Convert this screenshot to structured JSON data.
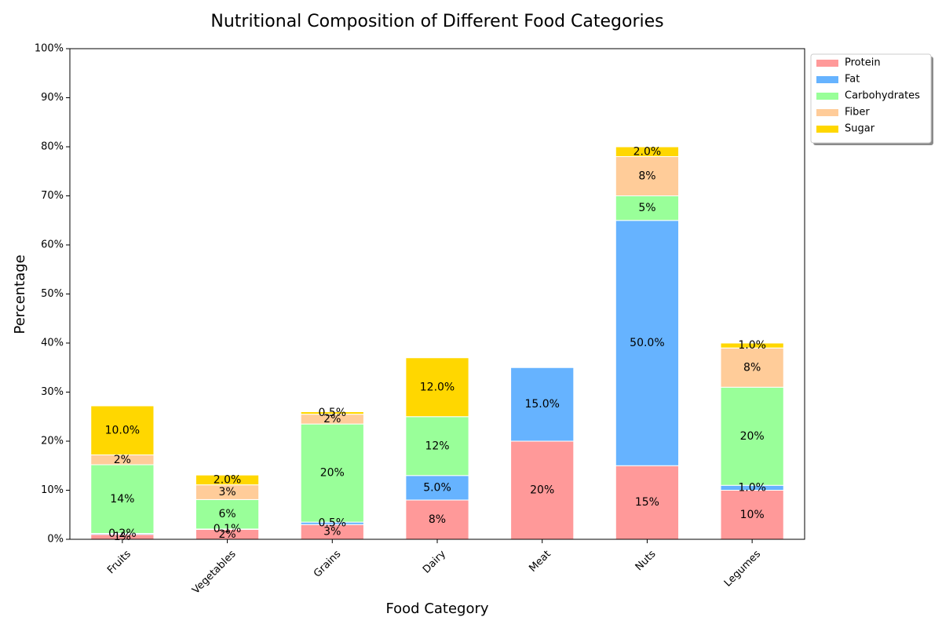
{
  "chart_data": {
    "type": "bar",
    "stacked": true,
    "title": "Nutritional Composition of Different Food Categories",
    "xlabel": "Food Category",
    "ylabel": "Percentage",
    "ylim": [
      0,
      100
    ],
    "yticks": [
      "0%",
      "10%",
      "20%",
      "30%",
      "40%",
      "50%",
      "60%",
      "70%",
      "80%",
      "90%",
      "100%"
    ],
    "categories": [
      "Fruits",
      "Vegetables",
      "Grains",
      "Dairy",
      "Meat",
      "Nuts",
      "Legumes"
    ],
    "legend_position": "upper-right-outside",
    "grid": false,
    "series": [
      {
        "name": "Protein",
        "color": "#ff9999",
        "values": [
          1,
          2,
          3,
          8,
          20,
          15,
          10
        ],
        "labels": [
          "1%",
          "2%",
          "3%",
          "8%",
          "20%",
          "15%",
          "10%"
        ]
      },
      {
        "name": "Fat",
        "color": "#66b3ff",
        "values": [
          0.2,
          0.1,
          0.5,
          5,
          15,
          50,
          1
        ],
        "labels": [
          "0.2%",
          "0.1%",
          "0.5%",
          "5.0%",
          "15.0%",
          "50.0%",
          "1.0%"
        ]
      },
      {
        "name": "Carbohydrates",
        "color": "#99ff99",
        "values": [
          14,
          6,
          20,
          12,
          0,
          5,
          20
        ],
        "labels": [
          "14%",
          "6%",
          "20%",
          "12%",
          "",
          "5%",
          "20%"
        ]
      },
      {
        "name": "Fiber",
        "color": "#ffcc99",
        "values": [
          2,
          3,
          2,
          0,
          0,
          8,
          8
        ],
        "labels": [
          "2%",
          "3%",
          "2%",
          "",
          "",
          "8%",
          "8%"
        ]
      },
      {
        "name": "Sugar",
        "color": "#ffd700",
        "values": [
          10,
          2,
          0.5,
          12,
          0,
          2,
          1
        ],
        "labels": [
          "10.0%",
          "2.0%",
          "0.5%",
          "12.0%",
          "",
          "2.0%",
          "1.0%"
        ]
      }
    ]
  }
}
